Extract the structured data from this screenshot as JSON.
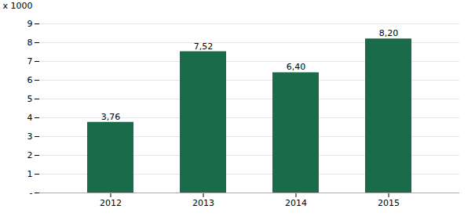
{
  "chart_data": {
    "type": "bar",
    "categories": [
      "2012",
      "2013",
      "2014",
      "2015"
    ],
    "values": [
      3.76,
      7.52,
      6.4,
      8.2
    ],
    "value_labels": [
      "3,76",
      "7,52",
      "6,40",
      "8,20"
    ],
    "data_labels": true,
    "color": "#1a6b4a",
    "ylabel": "x 1000",
    "ylim": [
      0,
      9
    ],
    "yticks": [
      {
        "value": 0,
        "label": "-"
      },
      1,
      2,
      3,
      4,
      5,
      6,
      7,
      8,
      9
    ],
    "grid": true
  }
}
